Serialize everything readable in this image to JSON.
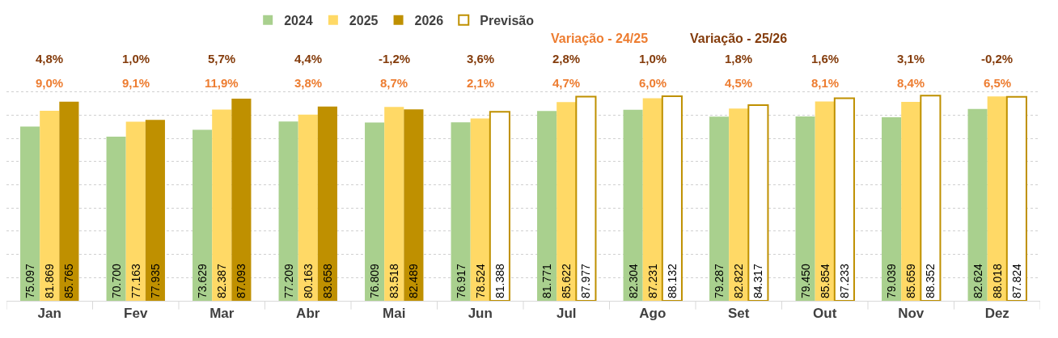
{
  "chart_data": {
    "type": "bar",
    "categories": [
      "Jan",
      "Fev",
      "Mar",
      "Abr",
      "Mai",
      "Jun",
      "Jul",
      "Ago",
      "Set",
      "Out",
      "Nov",
      "Dez"
    ],
    "grid": "y",
    "legend": "top",
    "tick_labels": "x",
    "series": [
      {
        "name": "2024",
        "color": "#a9d08e",
        "values": [
          75097,
          70700,
          73629,
          77209,
          76809,
          76917,
          81771,
          82304,
          79287,
          79450,
          79039,
          82624
        ],
        "value_labels": [
          "75.097",
          "70.700",
          "73.629",
          "77.209",
          "76.809",
          "76.917",
          "81.771",
          "82.304",
          "79.287",
          "79.450",
          "79.039",
          "82.624"
        ]
      },
      {
        "name": "2025",
        "color": "#ffd966",
        "values": [
          81869,
          77163,
          82387,
          80163,
          83518,
          78524,
          85622,
          87231,
          82822,
          85854,
          85659,
          88018
        ],
        "value_labels": [
          "81.869",
          "77.163",
          "82.387",
          "80.163",
          "83.518",
          "78.524",
          "85.622",
          "87.231",
          "82.822",
          "85.854",
          "85.659",
          "88.018"
        ]
      },
      {
        "name": "2026",
        "color": "#bf9000",
        "values": [
          85765,
          77935,
          87093,
          83658,
          82489,
          null,
          null,
          null,
          null,
          null,
          null,
          null
        ],
        "value_labels": [
          "85.765",
          "77.935",
          "87.093",
          "83.658",
          "82.489",
          null,
          null,
          null,
          null,
          null,
          null,
          null
        ]
      },
      {
        "name": "Previsão",
        "color": "#bf9000",
        "line_style": "dotted",
        "values": [
          null,
          null,
          null,
          null,
          null,
          81388,
          87977,
          88132,
          84317,
          87233,
          88352,
          87824
        ],
        "value_labels": [
          null,
          null,
          null,
          null,
          null,
          "81.388",
          "87.977",
          "88.132",
          "84.317",
          "87.233",
          "88.352",
          "87.824"
        ]
      },
      {
        "name": "Variação - 24/25",
        "type": "other",
        "color": "#ed7d31",
        "values": [
          null,
          null,
          null,
          null,
          null,
          null,
          null,
          null,
          null,
          null,
          null,
          null
        ],
        "value_labels": [
          "9,0%",
          "9,1%",
          "11,9%",
          "3,8%",
          "8,7%",
          "2,1%",
          "4,7%",
          "6,0%",
          "4,5%",
          "8,1%",
          "8,4%",
          "6,5%"
        ]
      },
      {
        "name": "Variação - 25/26",
        "type": "other",
        "color": "#843c0c",
        "values": [
          null,
          null,
          null,
          null,
          null,
          null,
          null,
          null,
          null,
          null,
          null,
          null
        ],
        "value_labels": [
          "4,8%",
          "1,0%",
          "5,7%",
          "4,4%",
          "-1,2%",
          "3,6%",
          "2,8%",
          "1,0%",
          "1,8%",
          "1,6%",
          "3,1%",
          "-0,2%"
        ]
      }
    ]
  }
}
